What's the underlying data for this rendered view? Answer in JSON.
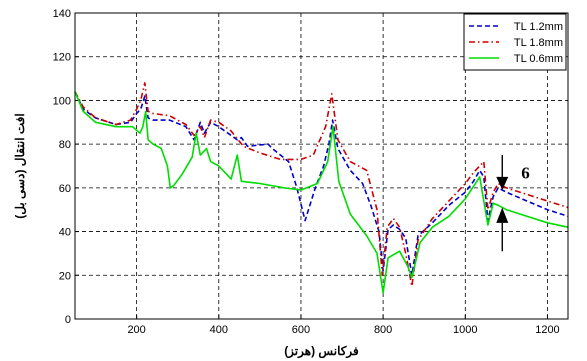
{
  "chart_data": {
    "type": "line",
    "xlabel": "فرکانس (هرتز)",
    "ylabel": "افت انتقال (دسی بل)",
    "xlim": [
      50,
      1250
    ],
    "ylim": [
      0,
      140
    ],
    "xticks": [
      200,
      400,
      600,
      800,
      1000,
      1200
    ],
    "yticks": [
      0,
      20,
      40,
      60,
      80,
      100,
      120,
      140
    ],
    "grid": true,
    "legend_position": "top-right",
    "annotation": "6",
    "series": [
      {
        "name": "TL 1.2mm",
        "color": "#0000cc",
        "dash": "dashed",
        "points": [
          [
            50,
            104
          ],
          [
            70,
            96
          ],
          [
            100,
            92
          ],
          [
            150,
            89
          ],
          [
            185,
            90
          ],
          [
            200,
            94
          ],
          [
            210,
            96
          ],
          [
            220,
            102
          ],
          [
            228,
            92
          ],
          [
            240,
            91
          ],
          [
            280,
            91
          ],
          [
            320,
            88
          ],
          [
            340,
            82
          ],
          [
            355,
            90
          ],
          [
            365,
            85
          ],
          [
            380,
            90
          ],
          [
            400,
            88
          ],
          [
            430,
            84
          ],
          [
            445,
            82
          ],
          [
            455,
            83
          ],
          [
            470,
            79
          ],
          [
            520,
            80
          ],
          [
            530,
            78
          ],
          [
            570,
            72
          ],
          [
            590,
            60
          ],
          [
            610,
            45
          ],
          [
            635,
            60
          ],
          [
            655,
            70
          ],
          [
            668,
            80
          ],
          [
            677,
            91
          ],
          [
            690,
            78
          ],
          [
            720,
            68
          ],
          [
            750,
            62
          ],
          [
            770,
            52
          ],
          [
            790,
            40
          ],
          [
            800,
            22
          ],
          [
            812,
            41
          ],
          [
            825,
            43
          ],
          [
            840,
            41
          ],
          [
            855,
            37
          ],
          [
            870,
            20
          ],
          [
            885,
            38
          ],
          [
            920,
            44
          ],
          [
            960,
            52
          ],
          [
            1000,
            58
          ],
          [
            1020,
            63
          ],
          [
            1035,
            68
          ],
          [
            1045,
            65
          ],
          [
            1055,
            45
          ],
          [
            1068,
            56
          ],
          [
            1080,
            60
          ],
          [
            1100,
            58
          ],
          [
            1150,
            54
          ],
          [
            1200,
            50
          ],
          [
            1250,
            47
          ]
        ]
      },
      {
        "name": "TL 1.8mm",
        "color": "#cc0000",
        "dash": "dashdot",
        "points": [
          [
            50,
            104
          ],
          [
            70,
            97
          ],
          [
            100,
            92
          ],
          [
            150,
            89
          ],
          [
            185,
            91
          ],
          [
            200,
            96
          ],
          [
            210,
            100
          ],
          [
            220,
            108
          ],
          [
            228,
            95
          ],
          [
            240,
            94
          ],
          [
            280,
            93
          ],
          [
            320,
            89
          ],
          [
            340,
            84
          ],
          [
            355,
            88
          ],
          [
            365,
            83
          ],
          [
            380,
            91
          ],
          [
            400,
            90
          ],
          [
            430,
            86
          ],
          [
            460,
            79
          ],
          [
            500,
            76
          ],
          [
            550,
            73
          ],
          [
            600,
            73
          ],
          [
            630,
            75
          ],
          [
            660,
            88
          ],
          [
            675,
            103
          ],
          [
            690,
            82
          ],
          [
            720,
            72
          ],
          [
            760,
            68
          ],
          [
            785,
            50
          ],
          [
            798,
            20
          ],
          [
            810,
            42
          ],
          [
            825,
            46
          ],
          [
            840,
            42
          ],
          [
            855,
            30
          ],
          [
            870,
            15
          ],
          [
            885,
            36
          ],
          [
            920,
            46
          ],
          [
            960,
            54
          ],
          [
            1000,
            62
          ],
          [
            1020,
            67
          ],
          [
            1035,
            70
          ],
          [
            1045,
            72
          ],
          [
            1055,
            50
          ],
          [
            1068,
            58
          ],
          [
            1080,
            62
          ],
          [
            1100,
            60
          ],
          [
            1150,
            57
          ],
          [
            1200,
            54
          ],
          [
            1250,
            51
          ]
        ]
      },
      {
        "name": "TL 0.6mm",
        "color": "#00dd00",
        "dash": "solid",
        "points": [
          [
            50,
            104
          ],
          [
            70,
            95
          ],
          [
            100,
            90
          ],
          [
            150,
            88
          ],
          [
            190,
            88
          ],
          [
            208,
            85
          ],
          [
            215,
            88
          ],
          [
            222,
            95
          ],
          [
            228,
            82
          ],
          [
            240,
            80
          ],
          [
            260,
            78
          ],
          [
            275,
            70
          ],
          [
            282,
            60
          ],
          [
            290,
            61
          ],
          [
            310,
            66
          ],
          [
            335,
            74
          ],
          [
            345,
            85
          ],
          [
            355,
            75
          ],
          [
            370,
            78
          ],
          [
            380,
            72
          ],
          [
            400,
            70
          ],
          [
            430,
            64
          ],
          [
            445,
            75
          ],
          [
            455,
            63
          ],
          [
            500,
            62
          ],
          [
            560,
            60
          ],
          [
            600,
            59
          ],
          [
            640,
            62
          ],
          [
            665,
            72
          ],
          [
            678,
            88
          ],
          [
            692,
            63
          ],
          [
            720,
            48
          ],
          [
            760,
            38
          ],
          [
            785,
            30
          ],
          [
            800,
            12
          ],
          [
            812,
            28
          ],
          [
            840,
            31
          ],
          [
            860,
            24
          ],
          [
            870,
            19
          ],
          [
            890,
            35
          ],
          [
            920,
            42
          ],
          [
            960,
            47
          ],
          [
            1000,
            55
          ],
          [
            1035,
            65
          ],
          [
            1055,
            43
          ],
          [
            1068,
            53
          ],
          [
            1080,
            52
          ],
          [
            1100,
            50
          ],
          [
            1150,
            47
          ],
          [
            1200,
            44
          ],
          [
            1250,
            42
          ]
        ]
      }
    ]
  }
}
